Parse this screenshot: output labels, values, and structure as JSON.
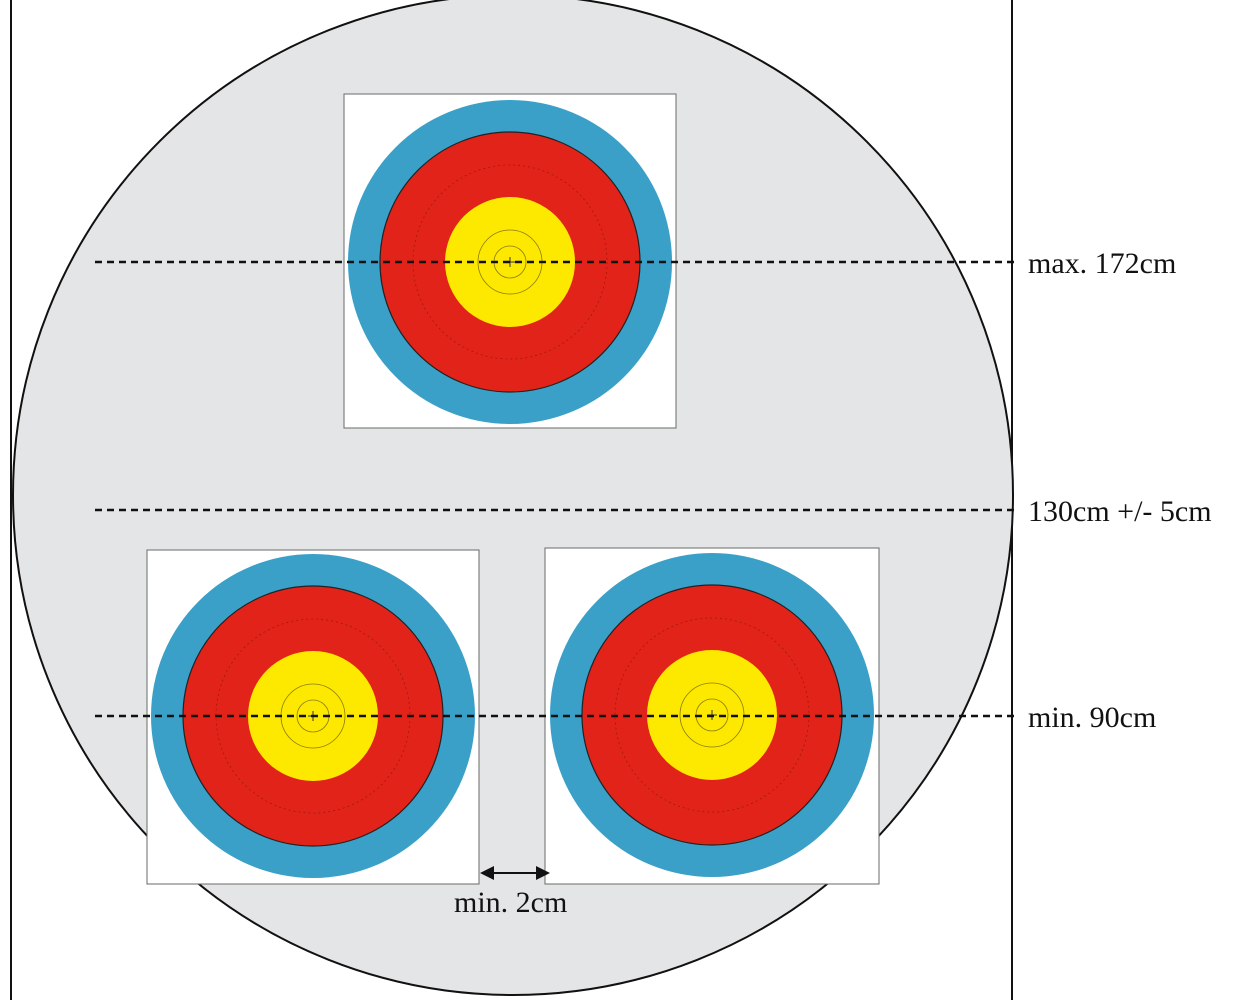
{
  "diagram": {
    "labels": {
      "max_height": "max. 172cm",
      "center_height": "130cm +/- 5cm",
      "min_height": "min. 90cm",
      "min_gap": "min. 2cm"
    },
    "colors": {
      "boss": "#e4e5e6",
      "face_background": "#ffffff",
      "blue_ring": "#3aa0c7",
      "red_ring": "#e2231a",
      "gold_ring": "#fde800",
      "line": "#111111"
    },
    "targets": [
      {
        "name": "target-top"
      },
      {
        "name": "target-bottom-left"
      },
      {
        "name": "target-bottom-right"
      }
    ]
  }
}
